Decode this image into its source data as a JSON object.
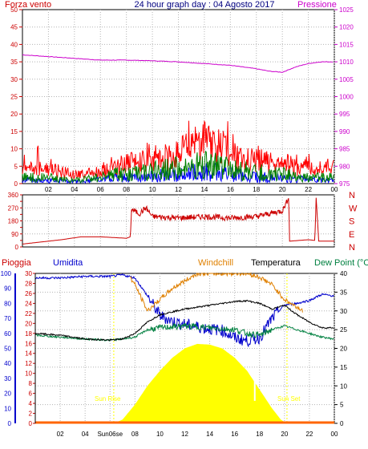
{
  "title": "24 hour graph day : 04 Agosto 2017",
  "labels": {
    "forza_vento": "Forza vento",
    "pressione": "Pressione",
    "pioggia": "Pioggia",
    "umidita": "Umidita",
    "windchill": "Windchill",
    "temperatura": "Temperatura",
    "dew_point": "Dew Point (°C",
    "sun_rise": "Sun Rise",
    "sun_set": "Sun Set",
    "sunrise_tick": "Sun06se",
    "compass": [
      "N",
      "W",
      "S",
      "E",
      "N"
    ]
  },
  "colors": {
    "wind_gust": "#ff0000",
    "wind_avg": "#008000",
    "wind_low": "#0000ff",
    "pressure": "#cc00cc",
    "direction": "#cc0000",
    "rain": "#ff6600",
    "humidity": "#0000cc",
    "windchill": "#e08000",
    "temperature": "#000000",
    "dewpoint": "#008040",
    "solar": "#ffff00",
    "axis_left": "#cc0000",
    "axis_right": "#cc00cc",
    "axis_humidity": "#0000cc",
    "axis_temp": "#000000",
    "grid": "#b4b4b4"
  },
  "chart_data": [
    {
      "type": "line",
      "title": "24 hour graph day : 04 Agosto 2017",
      "x_ticks": [
        "02",
        "04",
        "06",
        "08",
        "10",
        "12",
        "14",
        "16",
        "18",
        "20",
        "22",
        "00"
      ],
      "left_axis": {
        "label": "Forza vento",
        "ticks": [
          0,
          5,
          10,
          15,
          20,
          25,
          30,
          35,
          40,
          45,
          50
        ],
        "range": [
          0,
          50
        ]
      },
      "right_axis": {
        "label": "Pressione",
        "ticks": [
          975,
          980,
          985,
          990,
          995,
          1000,
          1005,
          1010,
          1015,
          1020,
          1025
        ],
        "range": [
          975,
          1025
        ]
      },
      "series": [
        {
          "name": "Pressione",
          "points": [
            [
              0,
              1012
            ],
            [
              2,
              1011.5
            ],
            [
              4,
              1011
            ],
            [
              6,
              1010.5
            ],
            [
              8,
              1010.5
            ],
            [
              10,
              1010.3
            ],
            [
              12,
              1010
            ],
            [
              14,
              1009.5
            ],
            [
              16,
              1009
            ],
            [
              18,
              1008
            ],
            [
              19,
              1007.3
            ],
            [
              20,
              1007
            ],
            [
              21,
              1008.5
            ],
            [
              22,
              1009.5
            ],
            [
              23,
              1010
            ],
            [
              24,
              1010
            ]
          ]
        },
        {
          "points": [
            [
              0,
              5
            ],
            [
              2,
              5
            ],
            [
              4,
              3
            ],
            [
              6,
              4
            ],
            [
              7,
              5
            ],
            [
              8,
              7
            ],
            [
              10,
              7
            ],
            [
              12,
              10
            ],
            [
              13,
              12
            ],
            [
              14,
              14
            ],
            [
              15,
              13
            ],
            [
              16,
              10
            ],
            [
              17,
              8
            ],
            [
              18,
              8
            ],
            [
              19,
              7
            ],
            [
              20,
              6
            ],
            [
              22,
              5
            ],
            [
              24,
              5
            ]
          ]
        },
        {
          "points": [
            [
              0,
              2
            ],
            [
              2,
              2
            ],
            [
              4,
              1
            ],
            [
              6,
              2
            ],
            [
              7,
              3
            ],
            [
              8,
              3
            ],
            [
              10,
              4
            ],
            [
              12,
              5
            ],
            [
              13,
              6
            ],
            [
              14,
              6
            ],
            [
              15,
              6
            ],
            [
              16,
              5
            ],
            [
              17,
              4
            ],
            [
              18,
              4
            ],
            [
              19,
              3
            ],
            [
              20,
              3
            ],
            [
              22,
              2
            ],
            [
              24,
              2
            ]
          ]
        }
      ]
    },
    {
      "type": "line",
      "left_axis": {
        "ticks": [
          0,
          45,
          90,
          135,
          180,
          225,
          270,
          315,
          360
        ],
        "range": [
          0,
          360
        ]
      },
      "right_axis_labels": [
        "N",
        "W",
        "S",
        "E",
        "N"
      ],
      "series": [
        {
          "points": [
            [
              0,
              20
            ],
            [
              1,
              30
            ],
            [
              3,
              50
            ],
            [
              4.5,
              70
            ],
            [
              6,
              70
            ],
            [
              8,
              60
            ],
            [
              8.3,
              70
            ],
            [
              8.4,
              260
            ],
            [
              9,
              230
            ],
            [
              9.5,
              270
            ],
            [
              10,
              210
            ],
            [
              12,
              200
            ],
            [
              14,
              210
            ],
            [
              16,
              200
            ],
            [
              18,
              210
            ],
            [
              19,
              230
            ],
            [
              20,
              250
            ],
            [
              20.5,
              340
            ],
            [
              20.55,
              40
            ],
            [
              22,
              50
            ],
            [
              22.5,
              45
            ],
            [
              22.6,
              340
            ],
            [
              22.8,
              40
            ],
            [
              24,
              40
            ]
          ]
        }
      ]
    },
    {
      "type": "line",
      "humidity_axis": {
        "ticks": [
          0,
          10,
          20,
          30,
          40,
          50,
          60,
          70,
          80,
          90,
          100
        ],
        "range": [
          0,
          100
        ]
      },
      "rain_axis": {
        "ticks": [
          0,
          2,
          4,
          6,
          8,
          10,
          12,
          14,
          16,
          18,
          20,
          22,
          24,
          26,
          28,
          30
        ],
        "range": [
          0,
          30
        ]
      },
      "temp_axis": {
        "ticks": [
          0,
          5,
          10,
          15,
          20,
          25,
          30,
          35,
          40
        ],
        "range": [
          0,
          40
        ]
      },
      "series": [
        {
          "name": "Umidita",
          "axis": "humidity",
          "points": [
            [
              0,
              97
            ],
            [
              2,
              97
            ],
            [
              4,
              98
            ],
            [
              6,
              98
            ],
            [
              7,
              99
            ],
            [
              8,
              97
            ],
            [
              9,
              85
            ],
            [
              10,
              72
            ],
            [
              11,
              68
            ],
            [
              12,
              66
            ],
            [
              14,
              63
            ],
            [
              15,
              62
            ],
            [
              16,
              57
            ],
            [
              17,
              55
            ],
            [
              18,
              57
            ],
            [
              19,
              70
            ],
            [
              20,
              79
            ],
            [
              21,
              80
            ],
            [
              22,
              82
            ],
            [
              23,
              86
            ],
            [
              24,
              85
            ]
          ]
        },
        {
          "name": "Windchill",
          "axis": "temp",
          "points": [
            [
              7.6,
              39
            ],
            [
              8,
              37
            ],
            [
              9,
              30
            ],
            [
              10,
              33
            ],
            [
              11,
              36
            ],
            [
              12,
              38
            ],
            [
              13,
              40
            ],
            [
              17,
              40
            ],
            [
              18,
              39
            ],
            [
              19,
              37
            ],
            [
              20,
              33
            ],
            [
              21,
              31
            ],
            [
              21.5,
              30
            ]
          ]
        },
        {
          "name": "Temperatura",
          "axis": "temp",
          "points": [
            [
              0,
              24
            ],
            [
              2,
              23.5
            ],
            [
              4,
              22.5
            ],
            [
              6,
              22.2
            ],
            [
              7,
              22.5
            ],
            [
              8,
              24
            ],
            [
              9,
              27
            ],
            [
              10,
              29
            ],
            [
              12,
              30.5
            ],
            [
              14,
              31.5
            ],
            [
              16,
              32.5
            ],
            [
              17,
              32.7
            ],
            [
              18,
              32
            ],
            [
              19,
              30.5
            ],
            [
              20,
              31.5
            ],
            [
              21,
              29
            ],
            [
              22,
              27
            ],
            [
              23,
              25.5
            ],
            [
              24,
              25.5
            ]
          ]
        },
        {
          "name": "Dew Point (°C",
          "axis": "temp",
          "points": [
            [
              0,
              23.5
            ],
            [
              2,
              23
            ],
            [
              4,
              22.5
            ],
            [
              6,
              22.2
            ],
            [
              7,
              22.5
            ],
            [
              8,
              23
            ],
            [
              9,
              25
            ],
            [
              10,
              25.5
            ],
            [
              12,
              26
            ],
            [
              14,
              25.5
            ],
            [
              16,
              25
            ],
            [
              17,
              24
            ],
            [
              18,
              23.5
            ],
            [
              19,
              25
            ],
            [
              20,
              26
            ],
            [
              21,
              25
            ],
            [
              22,
              24
            ],
            [
              23,
              23
            ],
            [
              24,
              22.5
            ]
          ]
        },
        {
          "name": "Pioggia",
          "axis": "rain",
          "points": [
            [
              0,
              0
            ],
            [
              24,
              0
            ]
          ]
        },
        {
          "axis": "temp",
          "type": "area",
          "points": [
            [
              6.3,
              0
            ],
            [
              7,
              1
            ],
            [
              8,
              5
            ],
            [
              9,
              10
            ],
            [
              10,
              14
            ],
            [
              11,
              17.5
            ],
            [
              12,
              20
            ],
            [
              13,
              21.2
            ],
            [
              14,
              21
            ],
            [
              15,
              20
            ],
            [
              16,
              17.5
            ],
            [
              17,
              14
            ],
            [
              17.5,
              11.5
            ],
            [
              18,
              9
            ],
            [
              19,
              4
            ],
            [
              19.7,
              1
            ],
            [
              20.2,
              0
            ]
          ]
        }
      ],
      "x_ticks": [
        "02",
        "04",
        "Sun06se",
        "08",
        "10",
        "12",
        "14",
        "16",
        "18",
        "20",
        "22",
        "00"
      ],
      "annotations": [
        "Sun Rise",
        "Sun Set"
      ]
    }
  ]
}
